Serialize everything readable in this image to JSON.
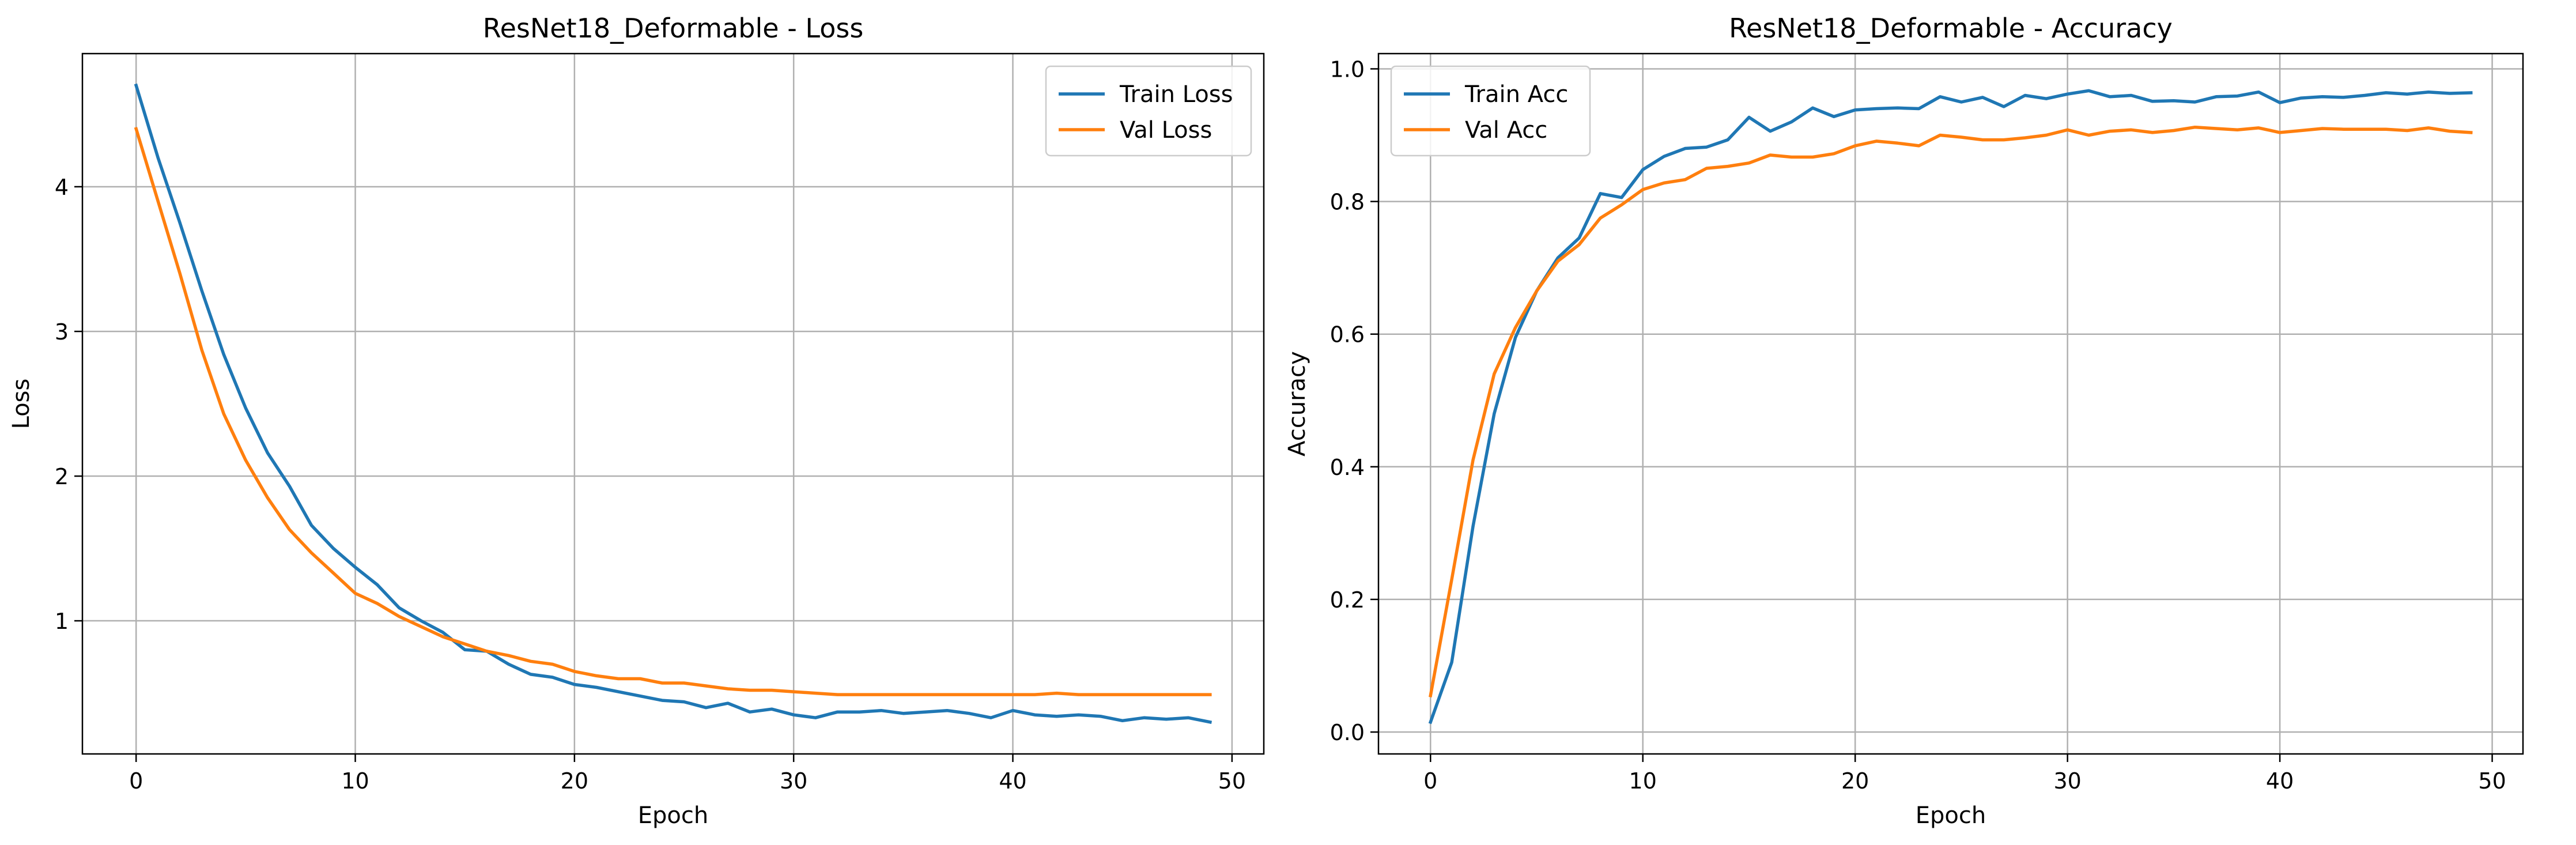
{
  "colors": {
    "train": "#1f77b4",
    "val": "#ff7f0e",
    "grid": "#b0b0b0",
    "axis": "#000000"
  },
  "chart_data": [
    {
      "type": "line",
      "title": "ResNet18_Deformable - Loss",
      "xlabel": "Epoch",
      "ylabel": "Loss",
      "xlim": [
        -2.45,
        51.45
      ],
      "ylim": [
        0.08,
        4.92
      ],
      "xticks": [
        0,
        10,
        20,
        30,
        40,
        50
      ],
      "yticks": [
        1,
        2,
        3,
        4
      ],
      "grid": true,
      "legend_position": "upper right",
      "x": [
        0,
        1,
        2,
        3,
        4,
        5,
        6,
        7,
        8,
        9,
        10,
        11,
        12,
        13,
        14,
        15,
        16,
        17,
        18,
        19,
        20,
        21,
        22,
        23,
        24,
        25,
        26,
        27,
        28,
        29,
        30,
        31,
        32,
        33,
        34,
        35,
        36,
        37,
        38,
        39,
        40,
        41,
        42,
        43,
        44,
        45,
        46,
        47,
        48,
        49
      ],
      "series": [
        {
          "name": "Train Loss",
          "color_key": "train",
          "values": [
            4.7,
            4.2,
            3.75,
            3.28,
            2.84,
            2.47,
            2.16,
            1.93,
            1.66,
            1.5,
            1.37,
            1.25,
            1.09,
            1.0,
            0.92,
            0.8,
            0.79,
            0.7,
            0.63,
            0.61,
            0.56,
            0.54,
            0.51,
            0.48,
            0.45,
            0.44,
            0.4,
            0.43,
            0.37,
            0.39,
            0.35,
            0.33,
            0.37,
            0.37,
            0.38,
            0.36,
            0.37,
            0.38,
            0.36,
            0.33,
            0.38,
            0.35,
            0.34,
            0.35,
            0.34,
            0.31,
            0.33,
            0.32,
            0.33,
            0.3
          ]
        },
        {
          "name": "Val Loss",
          "color_key": "val",
          "values": [
            4.4,
            3.9,
            3.4,
            2.87,
            2.43,
            2.11,
            1.85,
            1.63,
            1.47,
            1.33,
            1.19,
            1.12,
            1.03,
            0.96,
            0.89,
            0.84,
            0.79,
            0.76,
            0.72,
            0.7,
            0.65,
            0.62,
            0.6,
            0.6,
            0.57,
            0.57,
            0.55,
            0.53,
            0.52,
            0.52,
            0.51,
            0.5,
            0.49,
            0.49,
            0.49,
            0.49,
            0.49,
            0.49,
            0.49,
            0.49,
            0.49,
            0.49,
            0.5,
            0.49,
            0.49,
            0.49,
            0.49,
            0.49,
            0.49,
            0.49
          ]
        }
      ]
    },
    {
      "type": "line",
      "title": "ResNet18_Deformable - Accuracy",
      "xlabel": "Epoch",
      "ylabel": "Accuracy",
      "xlim": [
        -2.45,
        51.45
      ],
      "ylim": [
        -0.033,
        1.023
      ],
      "xticks": [
        0,
        10,
        20,
        30,
        40,
        50
      ],
      "yticks": [
        0.0,
        0.2,
        0.4,
        0.6,
        0.8,
        1.0
      ],
      "ytick_labels": [
        "0.0",
        "0.2",
        "0.4",
        "0.6",
        "0.8",
        "1.0"
      ],
      "grid": true,
      "legend_position": "upper left",
      "x": [
        0,
        1,
        2,
        3,
        4,
        5,
        6,
        7,
        8,
        9,
        10,
        11,
        12,
        13,
        14,
        15,
        16,
        17,
        18,
        19,
        20,
        21,
        22,
        23,
        24,
        25,
        26,
        27,
        28,
        29,
        30,
        31,
        32,
        33,
        34,
        35,
        36,
        37,
        38,
        39,
        40,
        41,
        42,
        43,
        44,
        45,
        46,
        47,
        48,
        49
      ],
      "series": [
        {
          "name": "Train Acc",
          "color_key": "train",
          "values": [
            0.015,
            0.105,
            0.31,
            0.48,
            0.595,
            0.665,
            0.715,
            0.745,
            0.812,
            0.806,
            0.848,
            0.868,
            0.88,
            0.882,
            0.893,
            0.927,
            0.906,
            0.92,
            0.941,
            0.928,
            0.938,
            0.94,
            0.941,
            0.94,
            0.958,
            0.95,
            0.957,
            0.943,
            0.96,
            0.955,
            0.962,
            0.967,
            0.958,
            0.96,
            0.951,
            0.952,
            0.95,
            0.958,
            0.959,
            0.965,
            0.949,
            0.956,
            0.958,
            0.957,
            0.96,
            0.964,
            0.962,
            0.965,
            0.963,
            0.964
          ]
        },
        {
          "name": "Val Acc",
          "color_key": "val",
          "values": [
            0.055,
            0.23,
            0.41,
            0.54,
            0.61,
            0.665,
            0.71,
            0.735,
            0.775,
            0.795,
            0.818,
            0.828,
            0.833,
            0.85,
            0.853,
            0.858,
            0.87,
            0.867,
            0.867,
            0.872,
            0.884,
            0.891,
            0.888,
            0.884,
            0.9,
            0.897,
            0.893,
            0.893,
            0.896,
            0.9,
            0.908,
            0.9,
            0.906,
            0.908,
            0.904,
            0.907,
            0.912,
            0.91,
            0.908,
            0.911,
            0.904,
            0.907,
            0.91,
            0.909,
            0.909,
            0.909,
            0.907,
            0.911,
            0.906,
            0.904
          ]
        }
      ]
    }
  ]
}
